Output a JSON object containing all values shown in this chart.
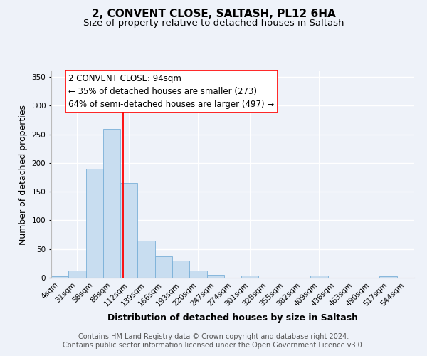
{
  "title": "2, CONVENT CLOSE, SALTASH, PL12 6HA",
  "subtitle": "Size of property relative to detached houses in Saltash",
  "xlabel": "Distribution of detached houses by size in Saltash",
  "ylabel": "Number of detached properties",
  "bar_color": "#c8ddf0",
  "bar_edge_color": "#7ab0d8",
  "categories": [
    "4sqm",
    "31sqm",
    "58sqm",
    "85sqm",
    "112sqm",
    "139sqm",
    "166sqm",
    "193sqm",
    "220sqm",
    "247sqm",
    "274sqm",
    "301sqm",
    "328sqm",
    "355sqm",
    "382sqm",
    "409sqm",
    "436sqm",
    "463sqm",
    "490sqm",
    "517sqm",
    "544sqm"
  ],
  "values": [
    2,
    12,
    190,
    260,
    165,
    65,
    37,
    30,
    13,
    5,
    0,
    4,
    0,
    0,
    0,
    4,
    0,
    0,
    0,
    3,
    0
  ],
  "ylim": [
    0,
    360
  ],
  "yticks": [
    0,
    50,
    100,
    150,
    200,
    250,
    300,
    350
  ],
  "red_line_x": 3.65,
  "annotation_title": "2 CONVENT CLOSE: 94sqm",
  "annotation_line1": "← 35% of detached houses are smaller (273)",
  "annotation_line2": "64% of semi-detached houses are larger (497) →",
  "footnote1": "Contains HM Land Registry data © Crown copyright and database right 2024.",
  "footnote2": "Contains public sector information licensed under the Open Government Licence v3.0.",
  "background_color": "#eef2f9",
  "grid_color": "#ffffff",
  "title_fontsize": 11,
  "subtitle_fontsize": 9.5,
  "axis_label_fontsize": 9,
  "tick_fontsize": 7.5,
  "annotation_fontsize": 8.5,
  "footnote_fontsize": 7
}
